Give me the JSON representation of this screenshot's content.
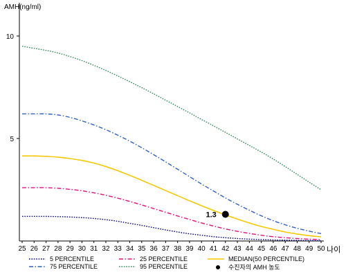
{
  "chart_data": {
    "type": "line",
    "ylabel": "AMH(ng/ml)",
    "xlabel": "나이",
    "x": [
      25,
      26,
      27,
      28,
      29,
      30,
      31,
      32,
      33,
      34,
      35,
      36,
      37,
      38,
      39,
      40,
      41,
      42,
      43,
      44,
      45,
      46,
      47,
      48,
      49,
      50
    ],
    "xlim": [
      25,
      50
    ],
    "ylim": [
      0,
      11
    ],
    "yticks": [
      5,
      10
    ],
    "grid": false,
    "legend_position": "bottom",
    "series": [
      {
        "name": "5 PERCENTILE",
        "color": "#000080",
        "dash": "dotted",
        "values": [
          1.2,
          1.2,
          1.2,
          1.19,
          1.17,
          1.14,
          1.1,
          1.04,
          0.96,
          0.86,
          0.76,
          0.65,
          0.54,
          0.44,
          0.35,
          0.28,
          0.21,
          0.16,
          0.12,
          0.09,
          0.07,
          0.05,
          0.04,
          0.03,
          0.02,
          0.02
        ]
      },
      {
        "name": "25 PERCENTILE",
        "color": "#e0107a",
        "dash": "dashdot",
        "values": [
          2.6,
          2.6,
          2.6,
          2.57,
          2.52,
          2.45,
          2.35,
          2.23,
          2.09,
          1.93,
          1.76,
          1.58,
          1.4,
          1.22,
          1.05,
          0.88,
          0.73,
          0.59,
          0.47,
          0.37,
          0.28,
          0.21,
          0.16,
          0.12,
          0.09,
          0.07
        ]
      },
      {
        "name": "MEDIAN(50 PERCENTILE)",
        "color": "#f5c800",
        "dash": "solid",
        "values": [
          4.15,
          4.15,
          4.13,
          4.09,
          4.02,
          3.93,
          3.8,
          3.63,
          3.43,
          3.2,
          2.96,
          2.71,
          2.46,
          2.21,
          1.96,
          1.72,
          1.49,
          1.27,
          1.07,
          0.88,
          0.71,
          0.57,
          0.44,
          0.34,
          0.26,
          0.2
        ]
      },
      {
        "name": "75 PERCENTILE",
        "color": "#2f5fc4",
        "dash": "dashdot",
        "values": [
          6.2,
          6.2,
          6.2,
          6.15,
          6.03,
          5.86,
          5.66,
          5.43,
          5.16,
          4.87,
          4.55,
          4.21,
          3.86,
          3.5,
          3.14,
          2.78,
          2.44,
          2.1,
          1.79,
          1.5,
          1.23,
          0.99,
          0.79,
          0.62,
          0.48,
          0.36
        ]
      },
      {
        "name": "95 PERCENTILE",
        "color": "#2e8b57",
        "dash": "dotted",
        "values": [
          9.5,
          9.4,
          9.3,
          9.17,
          9.0,
          8.8,
          8.57,
          8.32,
          8.05,
          7.77,
          7.48,
          7.18,
          6.87,
          6.56,
          6.25,
          5.93,
          5.62,
          5.3,
          4.98,
          4.66,
          4.34,
          4.0,
          3.63,
          3.25,
          2.87,
          2.5
        ]
      }
    ],
    "highlight": {
      "name": "수진자의 AMH 농도",
      "x": 42,
      "y": 1.3,
      "label": "1.3",
      "color": "#000000"
    }
  }
}
